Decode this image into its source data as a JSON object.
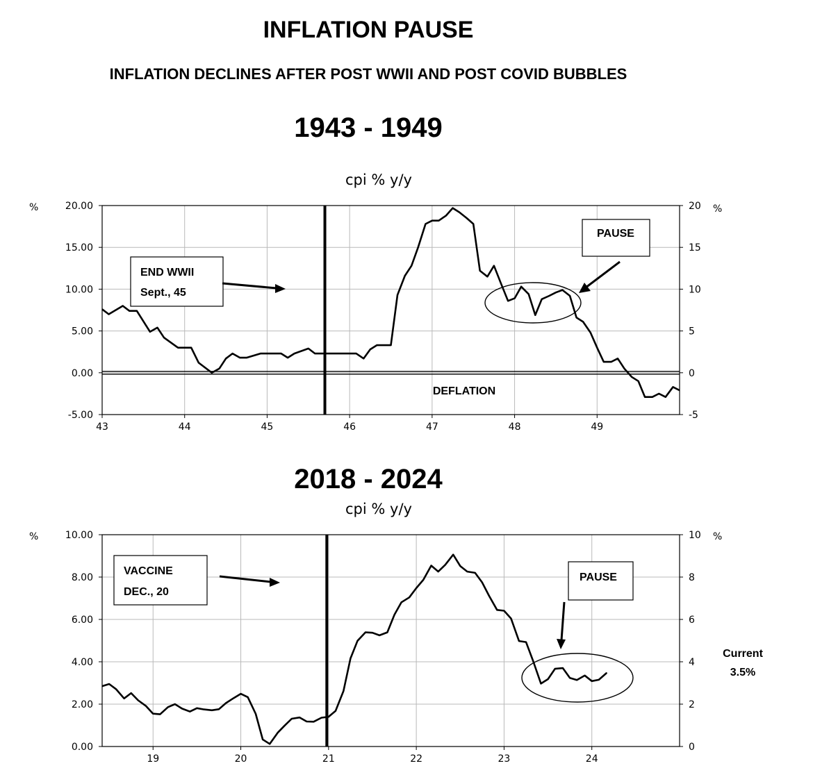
{
  "header": {
    "title": "INFLATION PAUSE",
    "subtitle": "INFLATION DECLINES AFTER POST WWII AND POST COVID BUBBLES"
  },
  "side_note": {
    "line1": "Current",
    "line2": "3.5%"
  },
  "chart_data": [
    {
      "type": "line",
      "period_label": "1943 - 1949",
      "title": "cpi % y/y",
      "ylabel_left": "%",
      "ylabel_right": "%",
      "xlim": [
        43,
        50
      ],
      "ylim": [
        -5,
        20
      ],
      "grid": true,
      "x_ticks": [
        "43",
        "44",
        "45",
        "46",
        "47",
        "48",
        "49"
      ],
      "y_ticks_left": [
        "20.00",
        "15.00",
        "10.00",
        "5.00",
        "0.00",
        "-5.00"
      ],
      "y_ticks_right": [
        "20",
        "15",
        "10",
        "5",
        "0",
        "-5"
      ],
      "vline_x": 45.7,
      "annotations": {
        "box1_line1": "END WWII",
        "box1_line2": "Sept., 45",
        "pause": "PAUSE",
        "deflation": "DEFLATION"
      },
      "series": [
        {
          "x": [
            43,
            43.08,
            43.25,
            43.33,
            43.42,
            43.58,
            43.67,
            43.75,
            43.92,
            44.08,
            44.17,
            44.33,
            44.42,
            44.5,
            44.58,
            44.67,
            44.75,
            44.92,
            45,
            45.17,
            45.25,
            45.33,
            45.5,
            45.58,
            45.7,
            45.83,
            46.08,
            46.17,
            46.25,
            46.33,
            46.5,
            46.58,
            46.67,
            46.75,
            46.83,
            46.92,
            47,
            47.08,
            47.17,
            47.25,
            47.33,
            47.42,
            47.5,
            47.58,
            47.67,
            47.75,
            47.83,
            47.92,
            48,
            48.08,
            48.17,
            48.25,
            48.33,
            48.42,
            48.5,
            48.58,
            48.67,
            48.75,
            48.83,
            48.92,
            49,
            49.08,
            49.17,
            49.25,
            49.33,
            49.42,
            49.5,
            49.58,
            49.67,
            49.75,
            49.83,
            49.92,
            50
          ],
          "y": [
            7.6,
            7,
            8,
            7.4,
            7.4,
            4.9,
            5.4,
            4.2,
            3,
            3,
            1.2,
            0,
            0.5,
            1.7,
            2.3,
            1.8,
            1.8,
            2.3,
            2.3,
            2.3,
            1.8,
            2.3,
            2.9,
            2.3,
            2.3,
            2.3,
            2.3,
            1.7,
            2.8,
            3.3,
            3.3,
            9.3,
            11.6,
            12.8,
            15,
            17.8,
            18.2,
            18.2,
            18.8,
            19.7,
            19.2,
            18.5,
            17.8,
            12.2,
            11.5,
            12.8,
            10.8,
            8.6,
            8.9,
            10.3,
            9.4,
            6.9,
            8.8,
            9.2,
            9.6,
            9.9,
            9.2,
            6.6,
            6.1,
            4.8,
            3,
            1.3,
            1.3,
            1.7,
            0.5,
            -0.5,
            -1,
            -2.9,
            -2.9,
            -2.5,
            -2.9,
            -1.7,
            -2.1
          ]
        }
      ]
    },
    {
      "type": "line",
      "period_label": "2018 - 2024",
      "title": "cpi % y/y",
      "ylabel_left": "%",
      "ylabel_right": "%",
      "xlim": [
        18.42,
        25
      ],
      "ylim": [
        0,
        10
      ],
      "grid": true,
      "x_ticks": [
        "19",
        "20",
        "21",
        "22",
        "23",
        "24"
      ],
      "y_ticks_left": [
        "10.00",
        "8.00",
        "6.00",
        "4.00",
        "2.00",
        "0.00"
      ],
      "y_ticks_right": [
        "10",
        "8",
        "6",
        "4",
        "2",
        "0"
      ],
      "vline_x": 20.98,
      "annotations": {
        "box1_line1": "VACCINE",
        "box1_line2": "DEC., 20",
        "pause": "PAUSE"
      },
      "series": [
        {
          "x": [
            18.42,
            18.5,
            18.58,
            18.67,
            18.75,
            18.83,
            18.92,
            19,
            19.08,
            19.17,
            19.25,
            19.33,
            19.42,
            19.5,
            19.58,
            19.67,
            19.75,
            19.83,
            19.92,
            20,
            20.08,
            20.17,
            20.25,
            20.33,
            20.42,
            20.5,
            20.58,
            20.67,
            20.75,
            20.83,
            20.92,
            21,
            21.08,
            21.17,
            21.25,
            21.33,
            21.42,
            21.5,
            21.58,
            21.67,
            21.75,
            21.83,
            21.92,
            22,
            22.08,
            22.17,
            22.25,
            22.33,
            22.42,
            22.5,
            22.58,
            22.67,
            22.75,
            22.83,
            22.92,
            23,
            23.08,
            23.17,
            23.25,
            23.33,
            23.42,
            23.5,
            23.58,
            23.67,
            23.75,
            23.83,
            23.92,
            24,
            24.08,
            24.17
          ],
          "y": [
            2.85,
            2.95,
            2.7,
            2.27,
            2.52,
            2.18,
            1.91,
            1.55,
            1.52,
            1.86,
            2,
            1.79,
            1.65,
            1.81,
            1.75,
            1.71,
            1.76,
            2.05,
            2.29,
            2.49,
            2.33,
            1.54,
            0.33,
            0.12,
            0.65,
            0.99,
            1.31,
            1.37,
            1.18,
            1.17,
            1.36,
            1.4,
            1.68,
            2.62,
            4.16,
            4.99,
            5.39,
            5.37,
            5.25,
            5.39,
            6.22,
            6.81,
            7.04,
            7.48,
            7.87,
            8.54,
            8.26,
            8.58,
            9.06,
            8.52,
            8.26,
            8.2,
            7.75,
            7.11,
            6.45,
            6.41,
            6.04,
            4.98,
            4.93,
            4.05,
            2.97,
            3.18,
            3.67,
            3.7,
            3.24,
            3.14,
            3.35,
            3.09,
            3.15,
            3.48
          ]
        }
      ]
    }
  ]
}
